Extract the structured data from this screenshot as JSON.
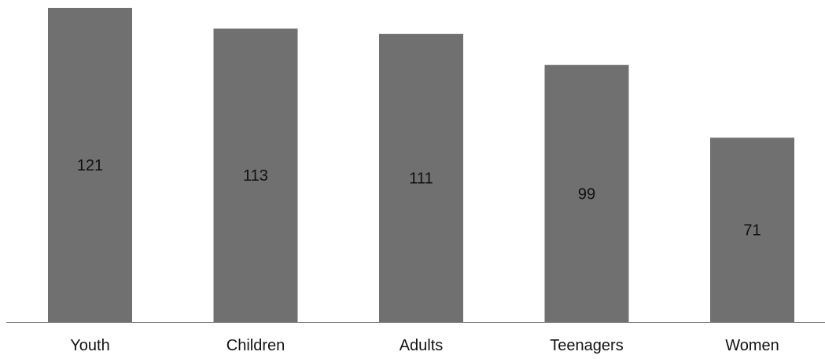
{
  "chart_data": {
    "type": "bar",
    "categories": [
      "Youth",
      "Children",
      "Adults",
      "Teenagers",
      "Women"
    ],
    "values": [
      121,
      113,
      111,
      99,
      71
    ],
    "ylim": [
      0,
      121
    ],
    "grid": false,
    "bar_color": "#707070",
    "axis_color": "#808080",
    "show_data_labels": true
  }
}
